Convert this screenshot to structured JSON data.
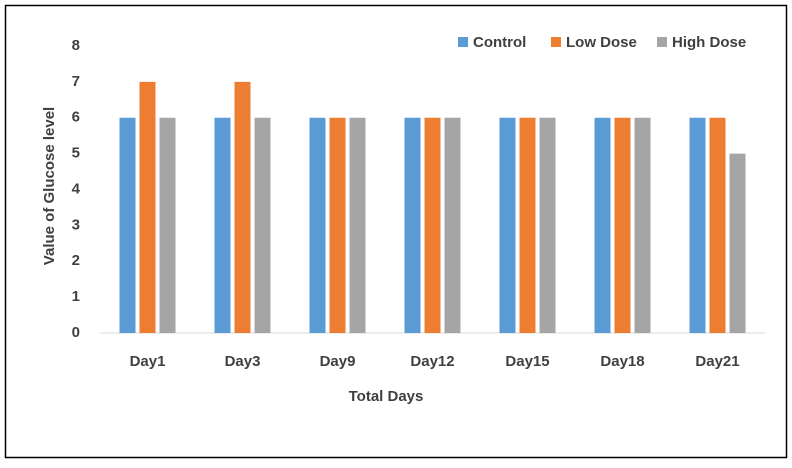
{
  "chart_data": {
    "type": "bar",
    "x_label": "Total Days",
    "y_label": "Value of Glucose level",
    "categories": [
      "Day1",
      "Day3",
      "Day9",
      "Day12",
      "Day15",
      "Day18",
      "Day21"
    ],
    "series": [
      {
        "name": "Control",
        "color": "#5b9bd5",
        "values": [
          6,
          6,
          6,
          6,
          6,
          6,
          6
        ]
      },
      {
        "name": "Low Dose",
        "color": "#ed7d31",
        "values": [
          7,
          7,
          6,
          6,
          6,
          6,
          6
        ]
      },
      {
        "name": "High Dose",
        "color": "#a5a5a5",
        "values": [
          6,
          6,
          6,
          6,
          6,
          6,
          5
        ]
      }
    ],
    "ylim": [
      0,
      8
    ],
    "yticks": [
      0,
      1,
      2,
      3,
      4,
      5,
      6,
      7,
      8
    ],
    "grid": false,
    "legend": "top-right"
  }
}
